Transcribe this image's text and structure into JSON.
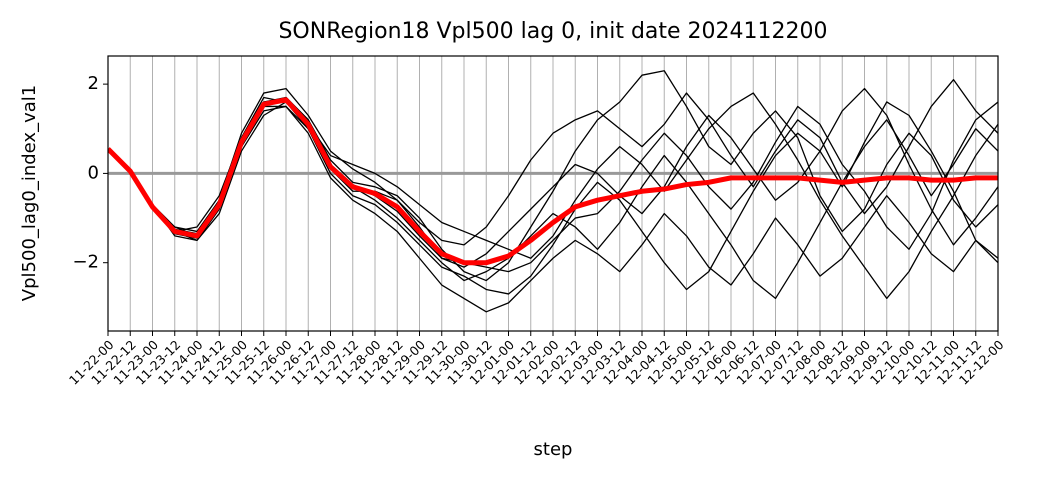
{
  "chart_data": {
    "type": "line",
    "title": "SONRegion18 Vpl500 lag 0, init date 2024112200",
    "xlabel": "step",
    "ylabel": "Vpl500_lag0_index_val1",
    "categories": [
      "11-22-00",
      "11-22-12",
      "11-23-00",
      "11-23-12",
      "11-24-00",
      "11-24-12",
      "11-25-00",
      "11-25-12",
      "11-26-00",
      "11-26-12",
      "11-27-00",
      "11-27-12",
      "11-28-00",
      "11-28-12",
      "11-29-00",
      "11-29-12",
      "11-30-00",
      "11-30-12",
      "12-01-00",
      "12-01-12",
      "12-02-00",
      "12-02-12",
      "12-03-00",
      "12-03-12",
      "12-04-00",
      "12-04-12",
      "12-05-00",
      "12-05-12",
      "12-06-00",
      "12-06-12",
      "12-07-00",
      "12-07-12",
      "12-08-00",
      "12-08-12",
      "12-09-00",
      "12-09-12",
      "12-10-00",
      "12-10-12",
      "12-11-00",
      "12-11-12",
      "12-12-00"
    ],
    "ylim": [
      -3.53,
      2.63
    ],
    "yticks": [
      {
        "value": -2,
        "label": "−2"
      },
      0,
      2
    ],
    "xgrid": true,
    "hline": {
      "value": 0,
      "color": "#999999"
    },
    "series": [
      {
        "color": "#000000",
        "values": [
          null,
          null,
          -0.8,
          -1.2,
          -1.3,
          -0.6,
          0.9,
          1.8,
          1.9,
          1.3,
          0.5,
          0.1,
          -0.2,
          -0.6,
          -1.1,
          -1.5,
          -1.6,
          -1.2,
          -0.5,
          0.3,
          0.9,
          1.2,
          1.4,
          1.0,
          0.6,
          1.1,
          1.8,
          1.2,
          0.4,
          -0.3,
          0.5,
          1.2,
          0.8,
          -0.2,
          -0.9,
          -0.3,
          0.6,
          1.5,
          2.1,
          1.4,
          0.9
        ]
      },
      {
        "color": "#000000",
        "values": [
          null,
          null,
          -0.7,
          -1.4,
          -1.5,
          -0.8,
          0.6,
          1.4,
          1.5,
          0.9,
          -0.1,
          -0.6,
          -0.9,
          -1.3,
          -1.9,
          -2.5,
          -2.8,
          -3.1,
          -2.9,
          -2.4,
          -1.9,
          -1.5,
          -1.8,
          -2.2,
          -1.6,
          -0.9,
          -1.4,
          -2.1,
          -2.5,
          -1.8,
          -1.0,
          -1.6,
          -2.3,
          -1.9,
          -1.2,
          -0.5,
          -1.1,
          -1.8,
          -2.2,
          -1.5,
          -1.9
        ]
      },
      {
        "color": "#000000",
        "values": [
          null,
          null,
          -0.75,
          -1.3,
          -1.2,
          -0.5,
          0.8,
          1.6,
          1.7,
          1.2,
          0.3,
          -0.2,
          -0.3,
          -0.5,
          -1.0,
          -1.7,
          -2.2,
          -2.4,
          -2.0,
          -1.2,
          -0.4,
          0.5,
          1.2,
          1.6,
          2.2,
          2.3,
          1.5,
          0.6,
          0.2,
          0.9,
          1.4,
          0.8,
          -0.5,
          -1.3,
          -0.8,
          0.2,
          0.9,
          0.4,
          -0.6,
          -1.2,
          -0.7
        ]
      },
      {
        "color": "#000000",
        "values": [
          null,
          null,
          -0.8,
          -1.3,
          -1.5,
          -0.9,
          0.5,
          1.3,
          1.6,
          1.0,
          0.0,
          -0.5,
          -0.7,
          -1.1,
          -1.6,
          -2.1,
          -2.3,
          -2.6,
          -2.7,
          -2.3,
          -1.6,
          -0.8,
          -0.2,
          -0.6,
          -1.3,
          -2.0,
          -2.6,
          -2.2,
          -1.3,
          -0.4,
          0.4,
          0.9,
          0.5,
          -0.3,
          0.7,
          1.6,
          1.3,
          0.5,
          -0.4,
          -1.5,
          -2.0
        ]
      },
      {
        "color": "#000000",
        "values": [
          null,
          null,
          -0.7,
          -1.2,
          -1.4,
          -0.6,
          0.8,
          1.7,
          1.6,
          1.1,
          0.4,
          0.2,
          0.0,
          -0.3,
          -0.7,
          -1.1,
          -1.3,
          -1.5,
          -1.7,
          -1.9,
          -1.4,
          -0.6,
          0.1,
          0.6,
          0.2,
          -0.4,
          0.3,
          1.0,
          1.5,
          1.8,
          1.1,
          0.3,
          -0.6,
          -1.4,
          -2.1,
          -2.8,
          -2.2,
          -1.3,
          -0.5,
          0.4,
          1.1
        ]
      },
      {
        "color": "#000000",
        "values": [
          null,
          null,
          -0.8,
          -1.3,
          -1.4,
          -0.7,
          0.7,
          1.5,
          1.7,
          1.2,
          0.2,
          -0.3,
          -0.6,
          -1.0,
          -1.5,
          -2.0,
          -2.4,
          -2.2,
          -1.9,
          -1.4,
          -0.9,
          -1.2,
          -1.7,
          -1.1,
          -0.3,
          0.4,
          -0.2,
          -0.9,
          -1.6,
          -2.4,
          -2.8,
          -2.0,
          -1.1,
          -0.2,
          0.6,
          1.2,
          0.4,
          -0.5,
          0.2,
          1.0,
          0.5
        ]
      },
      {
        "color": "#000000",
        "values": [
          null,
          null,
          -0.75,
          -1.35,
          -1.45,
          -0.7,
          0.6,
          1.5,
          1.5,
          1.0,
          0.1,
          -0.4,
          -0.4,
          -0.6,
          -1.2,
          -1.9,
          -2.1,
          -1.8,
          -1.3,
          -0.8,
          -0.3,
          0.2,
          0.0,
          -0.5,
          -0.9,
          -0.3,
          0.6,
          1.3,
          0.8,
          0.1,
          -0.6,
          -0.2,
          0.5,
          1.4,
          1.9,
          1.3,
          0.2,
          -0.8,
          -1.6,
          -1.0,
          -0.3
        ]
      },
      {
        "color": "#000000",
        "values": [
          null,
          null,
          -0.8,
          -1.25,
          -1.35,
          -0.65,
          0.75,
          1.6,
          1.65,
          1.15,
          0.2,
          -0.25,
          -0.5,
          -0.85,
          -1.4,
          -1.9,
          -2.0,
          -2.1,
          -2.2,
          -2.0,
          -1.5,
          -1.0,
          -0.9,
          -0.4,
          0.3,
          0.9,
          0.4,
          -0.3,
          -0.8,
          -0.2,
          0.7,
          1.5,
          1.1,
          0.2,
          -0.4,
          -1.2,
          -1.7,
          -0.9,
          0.3,
          1.2,
          1.6
        ]
      },
      {
        "color": "#ff0000",
        "values": [
          0.55,
          0.05,
          -0.75,
          -1.3,
          -1.4,
          -0.7,
          0.7,
          1.55,
          1.65,
          1.1,
          0.15,
          -0.3,
          -0.45,
          -0.75,
          -1.3,
          -1.8,
          -2.0,
          -2.0,
          -1.85,
          -1.5,
          -1.1,
          -0.75,
          -0.6,
          -0.5,
          -0.4,
          -0.35,
          -0.25,
          -0.2,
          -0.1,
          -0.1,
          -0.1,
          -0.1,
          -0.15,
          -0.2,
          -0.15,
          -0.1,
          -0.1,
          -0.15,
          -0.15,
          -0.1,
          -0.1
        ]
      }
    ]
  }
}
